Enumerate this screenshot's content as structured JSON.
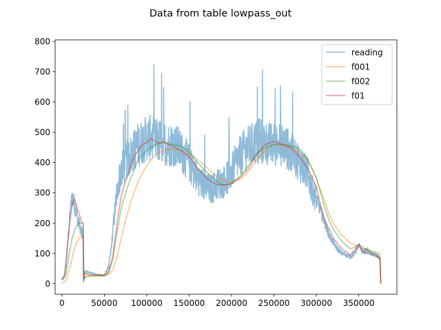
{
  "chart_data": {
    "type": "line",
    "title": "Data from table lowpass_out",
    "xlabel": "",
    "ylabel": "",
    "xlim": [
      -8000,
      395000
    ],
    "ylim": [
      -35,
      805
    ],
    "xticks": [
      0,
      50000,
      100000,
      150000,
      200000,
      250000,
      300000,
      350000
    ],
    "xtick_labels": [
      "0",
      "50000",
      "100000",
      "150000",
      "200000",
      "250000",
      "300000",
      "350000"
    ],
    "yticks": [
      0,
      100,
      200,
      300,
      400,
      500,
      600,
      700,
      800
    ],
    "ytick_labels": [
      "0",
      "100",
      "200",
      "300",
      "400",
      "500",
      "600",
      "700",
      "800"
    ],
    "grid": false,
    "legend_position": "top-right",
    "series": [
      {
        "name": "reading",
        "color": "#1f77b4",
        "alpha": 0.5,
        "noise": true,
        "x": [
          0,
          3000,
          5000,
          8000,
          10000,
          12000,
          14000,
          16000,
          18000,
          20000,
          22000,
          24000,
          25000,
          25500,
          27000,
          30000,
          35000,
          40000,
          45000,
          50000,
          55000,
          58000,
          62000,
          66000,
          70000,
          75000,
          80000,
          85000,
          90000,
          95000,
          100000,
          105000,
          110000,
          115000,
          120000,
          125000,
          130000,
          135000,
          140000,
          145000,
          150000,
          155000,
          160000,
          165000,
          170000,
          175000,
          180000,
          185000,
          190000,
          195000,
          200000,
          205000,
          210000,
          215000,
          220000,
          225000,
          230000,
          235000,
          240000,
          245000,
          250000,
          255000,
          260000,
          265000,
          270000,
          275000,
          280000,
          285000,
          290000,
          295000,
          300000,
          305000,
          310000,
          315000,
          320000,
          325000,
          330000,
          335000,
          340000,
          345000,
          350000,
          355000,
          360000,
          365000,
          370000,
          375000,
          376000
        ],
        "y": [
          15,
          20,
          60,
          180,
          240,
          290,
          270,
          250,
          220,
          200,
          180,
          160,
          160,
          5,
          40,
          38,
          35,
          30,
          28,
          28,
          55,
          110,
          230,
          330,
          370,
          400,
          420,
          440,
          460,
          470,
          480,
          480,
          470,
          470,
          465,
          460,
          460,
          455,
          440,
          420,
          400,
          370,
          350,
          330,
          320,
          310,
          320,
          330,
          335,
          350,
          370,
          400,
          420,
          440,
          450,
          460,
          470,
          470,
          465,
          460,
          460,
          460,
          460,
          450,
          430,
          420,
          400,
          380,
          360,
          310,
          280,
          240,
          200,
          160,
          135,
          115,
          100,
          95,
          88,
          100,
          125,
          105,
          110,
          100,
          95,
          85,
          5
        ]
      },
      {
        "name": "f001",
        "color": "#ff7f0e",
        "alpha": 0.5,
        "noise": false,
        "x": [
          0,
          5000,
          10000,
          15000,
          20000,
          24000,
          25000,
          26000,
          30000,
          40000,
          50000,
          55000,
          60000,
          65000,
          70000,
          75000,
          80000,
          85000,
          90000,
          100000,
          110000,
          120000,
          130000,
          140000,
          150000,
          160000,
          170000,
          180000,
          190000,
          200000,
          210000,
          220000,
          230000,
          240000,
          250000,
          260000,
          270000,
          280000,
          285000,
          290000,
          295000,
          300000,
          305000,
          310000,
          315000,
          320000,
          330000,
          340000,
          350000,
          360000,
          370000,
          375000,
          376000
        ],
        "y": [
          0,
          10,
          60,
          120,
          150,
          160,
          160,
          20,
          25,
          25,
          25,
          30,
          45,
          90,
          150,
          210,
          260,
          300,
          340,
          390,
          425,
          440,
          445,
          440,
          430,
          410,
          385,
          360,
          340,
          335,
          345,
          370,
          410,
          440,
          460,
          455,
          445,
          435,
          425,
          405,
          380,
          345,
          310,
          270,
          230,
          200,
          160,
          135,
          120,
          110,
          105,
          100,
          0
        ]
      },
      {
        "name": "f002",
        "color": "#2ca02c",
        "alpha": 0.5,
        "noise": false,
        "x": [
          0,
          5000,
          8000,
          12000,
          16000,
          20000,
          24000,
          25000,
          26000,
          30000,
          40000,
          50000,
          55000,
          60000,
          65000,
          70000,
          75000,
          80000,
          90000,
          100000,
          110000,
          120000,
          130000,
          140000,
          150000,
          160000,
          170000,
          180000,
          190000,
          200000,
          210000,
          220000,
          230000,
          240000,
          250000,
          260000,
          270000,
          280000,
          290000,
          300000,
          305000,
          310000,
          315000,
          320000,
          330000,
          340000,
          345000,
          350000,
          360000,
          370000,
          375000,
          376000
        ],
        "y": [
          10,
          30,
          90,
          150,
          185,
          200,
          200,
          200,
          15,
          25,
          27,
          27,
          35,
          80,
          170,
          250,
          300,
          340,
          410,
          440,
          460,
          465,
          460,
          455,
          435,
          400,
          370,
          345,
          325,
          330,
          355,
          390,
          430,
          450,
          460,
          460,
          455,
          445,
          410,
          350,
          300,
          250,
          210,
          180,
          140,
          115,
          120,
          130,
          110,
          95,
          85,
          0
        ]
      },
      {
        "name": "f01",
        "color": "#d62728",
        "alpha": 0.5,
        "noise": false,
        "x": [
          0,
          3000,
          6000,
          10000,
          13000,
          15000,
          18000,
          21000,
          24000,
          25000,
          25500,
          27000,
          30000,
          40000,
          50000,
          55000,
          60000,
          65000,
          70000,
          75000,
          80000,
          85000,
          90000,
          95000,
          100000,
          105000,
          110000,
          115000,
          120000,
          125000,
          130000,
          140000,
          150000,
          160000,
          170000,
          180000,
          190000,
          200000,
          210000,
          220000,
          230000,
          240000,
          250000,
          260000,
          270000,
          280000,
          290000,
          300000,
          305000,
          310000,
          320000,
          330000,
          340000,
          345000,
          350000,
          355000,
          360000,
          370000,
          375000,
          376000
        ],
        "y": [
          15,
          30,
          110,
          220,
          270,
          280,
          250,
          225,
          200,
          195,
          10,
          35,
          30,
          28,
          28,
          40,
          90,
          200,
          290,
          340,
          380,
          420,
          440,
          460,
          465,
          480,
          470,
          465,
          470,
          460,
          455,
          440,
          420,
          380,
          350,
          330,
          325,
          330,
          350,
          380,
          430,
          460,
          470,
          460,
          450,
          420,
          380,
          320,
          260,
          210,
          150,
          115,
          95,
          110,
          130,
          105,
          100,
          90,
          85,
          0
        ]
      }
    ]
  }
}
